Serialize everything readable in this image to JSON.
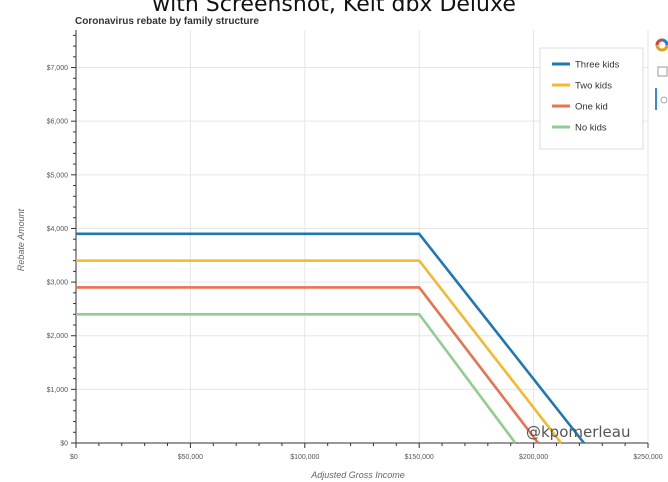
{
  "top_text": "with Screenshot, Kelt dbx Deluxe",
  "chart_data": {
    "type": "line",
    "title": "Coronavirus rebate by family structure",
    "xlabel": "Adjusted Gross Income",
    "ylabel": "Rebate Amount",
    "xlim": [
      0,
      250000
    ],
    "ylim": [
      0,
      7700
    ],
    "x_ticks": [
      0,
      50000,
      100000,
      150000,
      200000,
      250000
    ],
    "x_tick_labels": [
      "$0",
      "$50,000",
      "$100,000",
      "$150,000",
      "$200,000",
      "$250,000"
    ],
    "y_ticks": [
      0,
      1000,
      2000,
      3000,
      4000,
      5000,
      6000,
      7000
    ],
    "y_tick_labels": [
      "$0",
      "$1,000",
      "$2,000",
      "$3,000",
      "$4,000",
      "$5,000",
      "$6,000",
      "$7,000"
    ],
    "grid": true,
    "legend_position": "top-right",
    "series": [
      {
        "name": "Three kids",
        "color": "#1f77b4",
        "x": [
          0,
          150000,
          222000
        ],
        "y": [
          3900,
          3900,
          0
        ]
      },
      {
        "name": "Two kids",
        "color": "#f5b82e",
        "x": [
          0,
          150000,
          212000
        ],
        "y": [
          3400,
          3400,
          0
        ]
      },
      {
        "name": "One kid",
        "color": "#e8734f",
        "x": [
          0,
          150000,
          202000
        ],
        "y": [
          2900,
          2900,
          0
        ]
      },
      {
        "name": "No kids",
        "color": "#8fce8f",
        "x": [
          0,
          150000,
          192000
        ],
        "y": [
          2400,
          2400,
          0
        ]
      }
    ],
    "annotation": "@kpomerleau"
  },
  "toolbar": {
    "icons": [
      "bokeh-logo-icon",
      "box-zoom-icon",
      "wheel-zoom-icon",
      "reset-icon"
    ]
  }
}
